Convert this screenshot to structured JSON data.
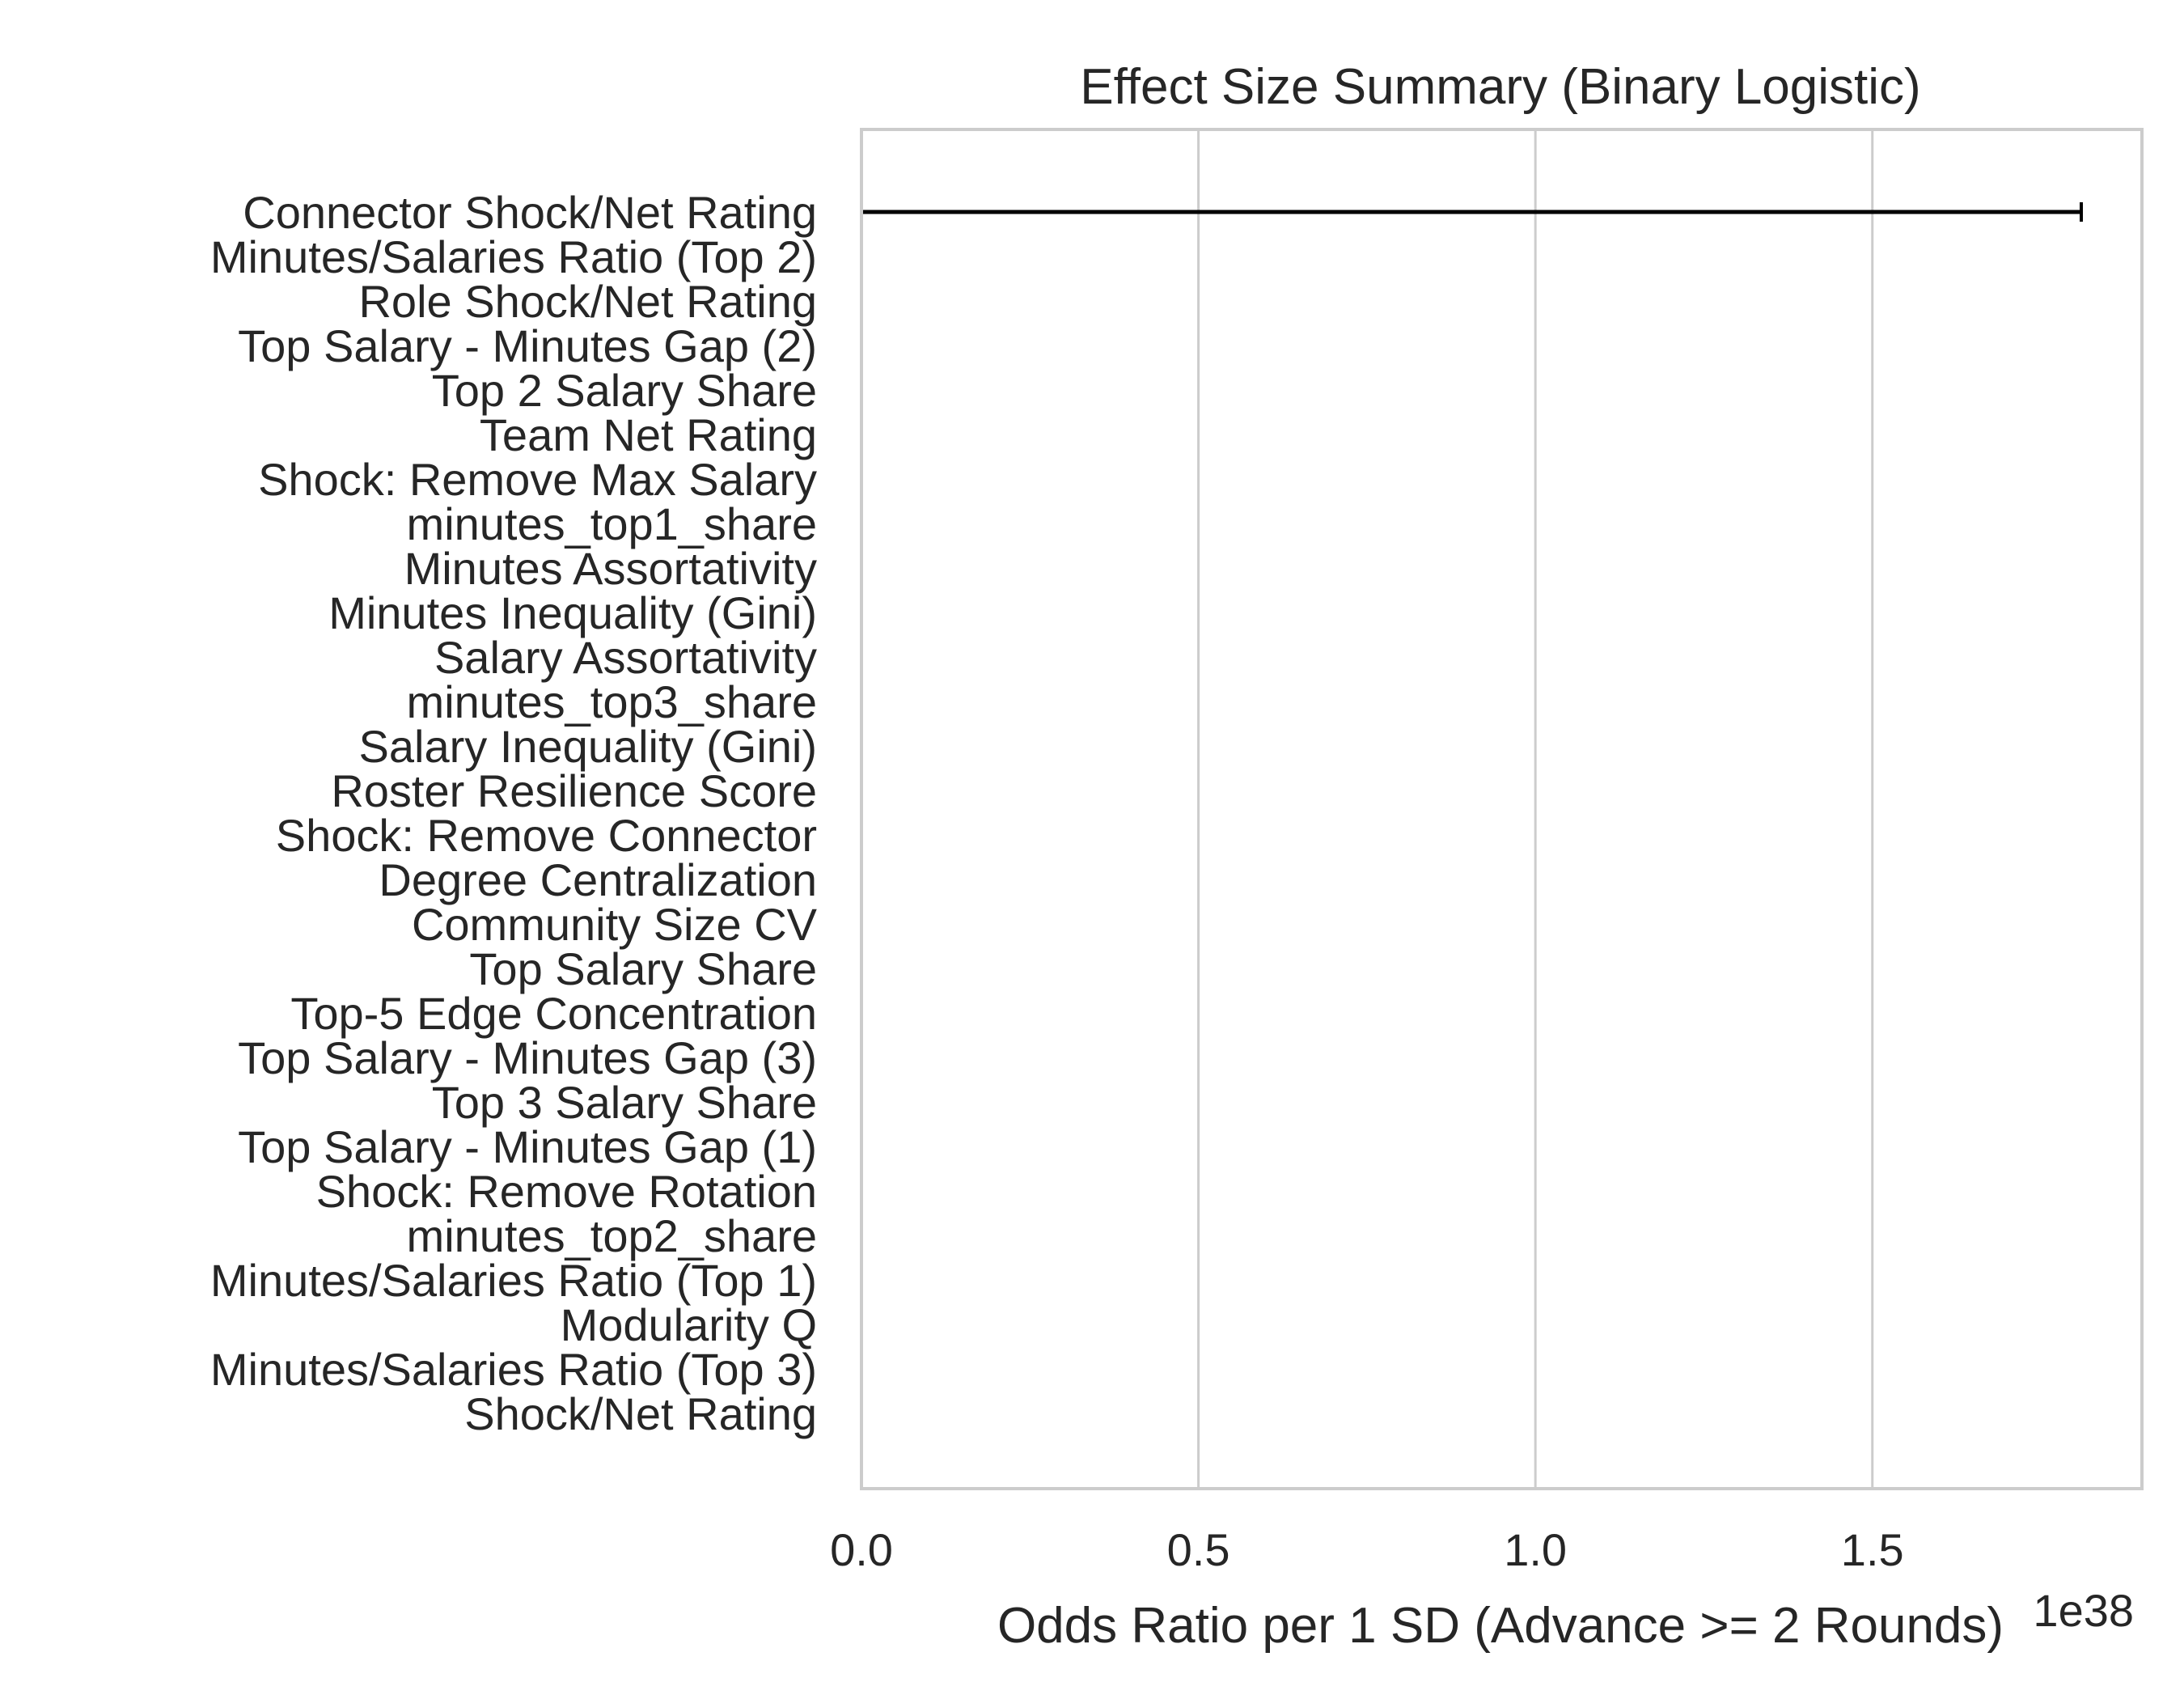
{
  "chart_data": {
    "type": "forest",
    "title": "Effect Size Summary (Binary Logistic)",
    "xlabel": "Odds Ratio per 1 SD (Advance >= 2 Rounds)",
    "x_offset_label": "1e38",
    "xlim": [
      0.0,
      1.9
    ],
    "xticks": [
      0.0,
      0.5,
      1.0,
      1.5
    ],
    "xtick_labels": [
      "0.0",
      "0.5",
      "1.0",
      "1.5"
    ],
    "reference_line": 0.0,
    "grid": true,
    "colors": {
      "grid": "#cccccc",
      "spine": "#cccccc",
      "bar": "#000000",
      "ref": "#808080"
    },
    "variables": [
      {
        "name": "Connector Shock/Net Rating",
        "estimate": 0.0,
        "lower": 0.0,
        "upper": 1.81
      },
      {
        "name": "Minutes/Salaries Ratio (Top 2)",
        "estimate": 0.0,
        "lower": 0.0,
        "upper": 0.0
      },
      {
        "name": "Role Shock/Net Rating",
        "estimate": 0.0,
        "lower": 0.0,
        "upper": 0.0
      },
      {
        "name": "Top Salary - Minutes Gap (2)",
        "estimate": 0.0,
        "lower": 0.0,
        "upper": 0.0
      },
      {
        "name": "Top 2 Salary Share",
        "estimate": 0.0,
        "lower": 0.0,
        "upper": 0.0
      },
      {
        "name": "Team Net Rating",
        "estimate": 0.0,
        "lower": 0.0,
        "upper": 0.0
      },
      {
        "name": "Shock: Remove Max Salary",
        "estimate": 0.0,
        "lower": 0.0,
        "upper": 0.0
      },
      {
        "name": "minutes_top1_share",
        "estimate": 0.0,
        "lower": 0.0,
        "upper": 0.0
      },
      {
        "name": "Minutes Assortativity",
        "estimate": 0.0,
        "lower": 0.0,
        "upper": 0.0
      },
      {
        "name": "Minutes Inequality (Gini)",
        "estimate": 0.0,
        "lower": 0.0,
        "upper": 0.0
      },
      {
        "name": "Salary Assortativity",
        "estimate": 0.0,
        "lower": 0.0,
        "upper": 0.0
      },
      {
        "name": "minutes_top3_share",
        "estimate": 0.0,
        "lower": 0.0,
        "upper": 0.0
      },
      {
        "name": "Salary Inequality (Gini)",
        "estimate": 0.0,
        "lower": 0.0,
        "upper": 0.0
      },
      {
        "name": "Roster Resilience Score",
        "estimate": 0.0,
        "lower": 0.0,
        "upper": 0.0
      },
      {
        "name": "Shock: Remove Connector",
        "estimate": 0.0,
        "lower": 0.0,
        "upper": 0.0
      },
      {
        "name": "Degree Centralization",
        "estimate": 0.0,
        "lower": 0.0,
        "upper": 0.0
      },
      {
        "name": "Community Size CV",
        "estimate": 0.0,
        "lower": 0.0,
        "upper": 0.0
      },
      {
        "name": "Top Salary Share",
        "estimate": 0.0,
        "lower": 0.0,
        "upper": 0.0
      },
      {
        "name": "Top-5 Edge Concentration",
        "estimate": 0.0,
        "lower": 0.0,
        "upper": 0.0
      },
      {
        "name": "Top Salary - Minutes Gap (3)",
        "estimate": 0.0,
        "lower": 0.0,
        "upper": 0.0
      },
      {
        "name": "Top 3 Salary Share",
        "estimate": 0.0,
        "lower": 0.0,
        "upper": 0.0
      },
      {
        "name": "Top Salary - Minutes Gap (1)",
        "estimate": 0.0,
        "lower": 0.0,
        "upper": 0.0
      },
      {
        "name": "Shock: Remove Rotation",
        "estimate": 0.0,
        "lower": 0.0,
        "upper": 0.0
      },
      {
        "name": "minutes_top2_share",
        "estimate": 0.0,
        "lower": 0.0,
        "upper": 0.0
      },
      {
        "name": "Minutes/Salaries Ratio (Top 1)",
        "estimate": 0.0,
        "lower": 0.0,
        "upper": 0.0
      },
      {
        "name": "Modularity Q",
        "estimate": 0.0,
        "lower": 0.0,
        "upper": 0.0
      },
      {
        "name": "Minutes/Salaries Ratio (Top 3)",
        "estimate": 0.0,
        "lower": 0.0,
        "upper": 0.0
      },
      {
        "name": "Shock/Net Rating",
        "estimate": 0.0,
        "lower": 0.0,
        "upper": 0.0
      }
    ]
  }
}
